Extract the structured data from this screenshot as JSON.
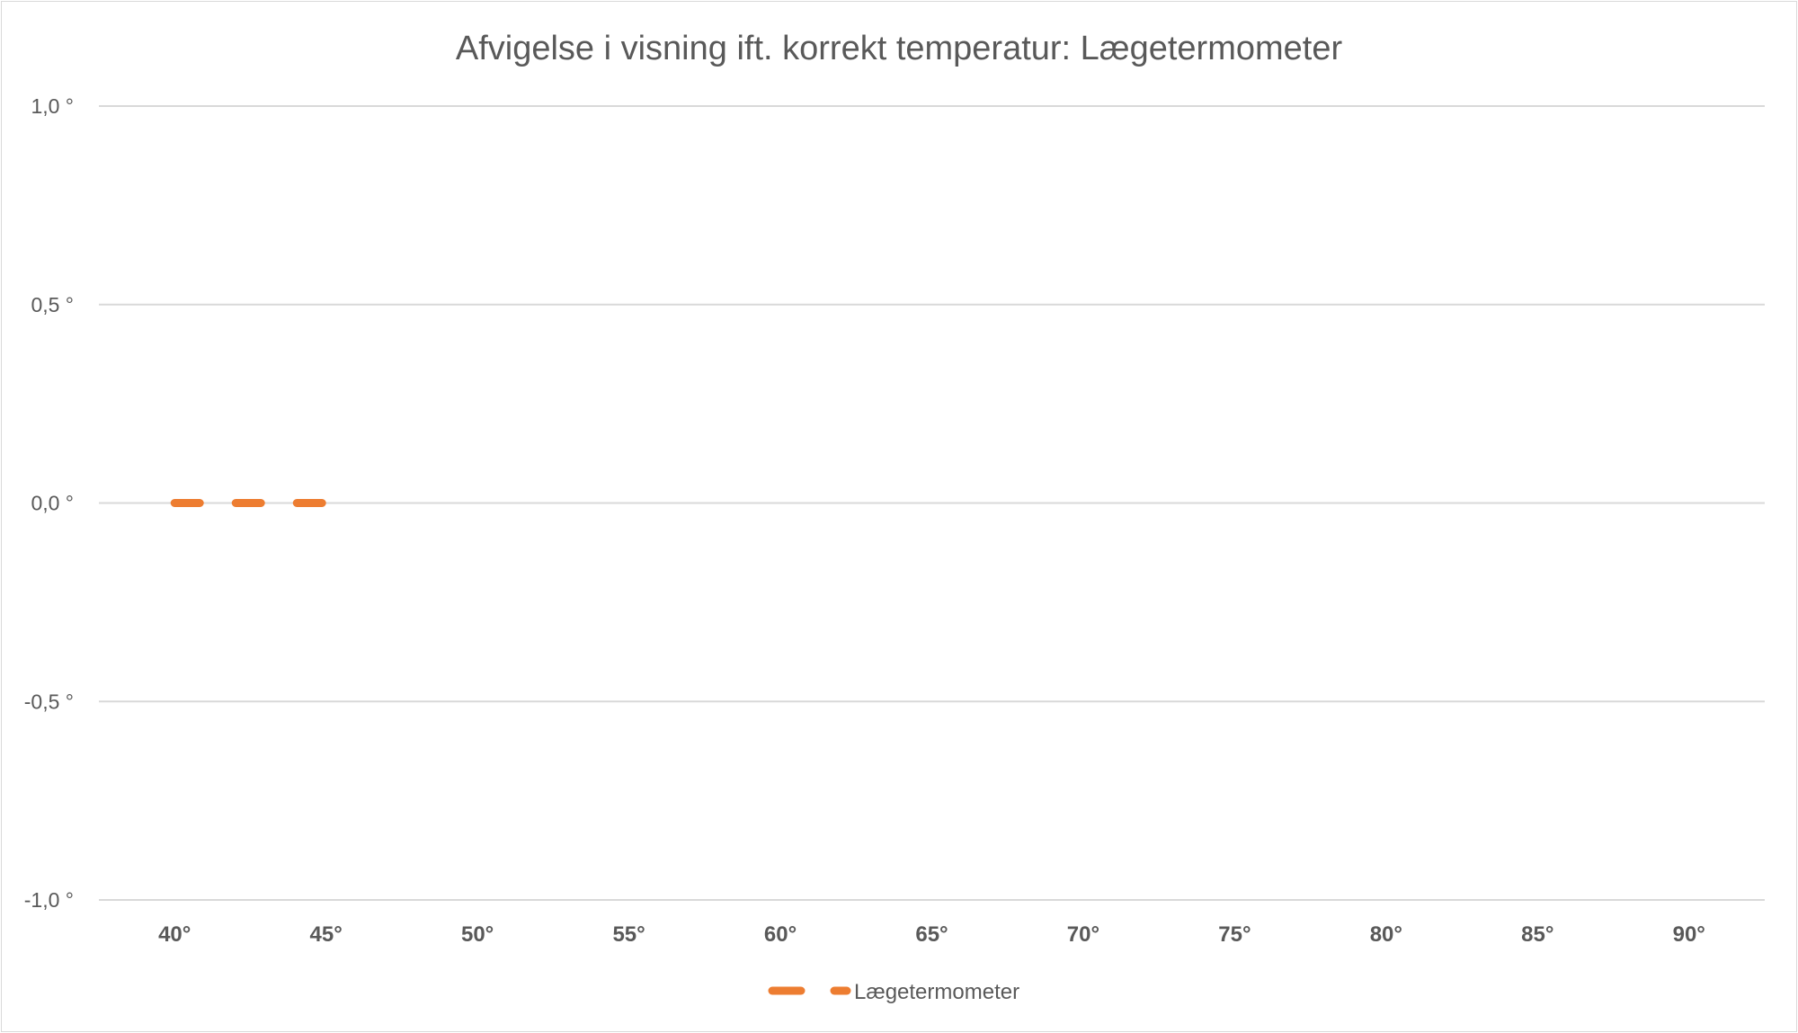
{
  "chart_data": {
    "type": "line",
    "title": "Afvigelse i visning ift. korrekt temperatur: Lægetermometer",
    "xlabel": "",
    "ylabel": "",
    "categories": [
      "40°",
      "45°",
      "50°",
      "55°",
      "60°",
      "65°",
      "70°",
      "75°",
      "80°",
      "85°",
      "90°"
    ],
    "y_ticks": [
      {
        "value": 1.0,
        "label": "1,0 °"
      },
      {
        "value": 0.5,
        "label": "0,5 °"
      },
      {
        "value": 0.0,
        "label": "0,0 °"
      },
      {
        "value": -0.5,
        "label": "-0,5 °"
      },
      {
        "value": -1.0,
        "label": "-1,0 °"
      }
    ],
    "ylim": [
      -1.0,
      1.0
    ],
    "grid": true,
    "legend_position": "bottom",
    "series": [
      {
        "name": "Lægetermometer",
        "color": "#ed7d31",
        "line_style": "dashed",
        "values": [
          0.0,
          0.0,
          null,
          null,
          null,
          null,
          null,
          null,
          null,
          null,
          null
        ]
      }
    ]
  }
}
